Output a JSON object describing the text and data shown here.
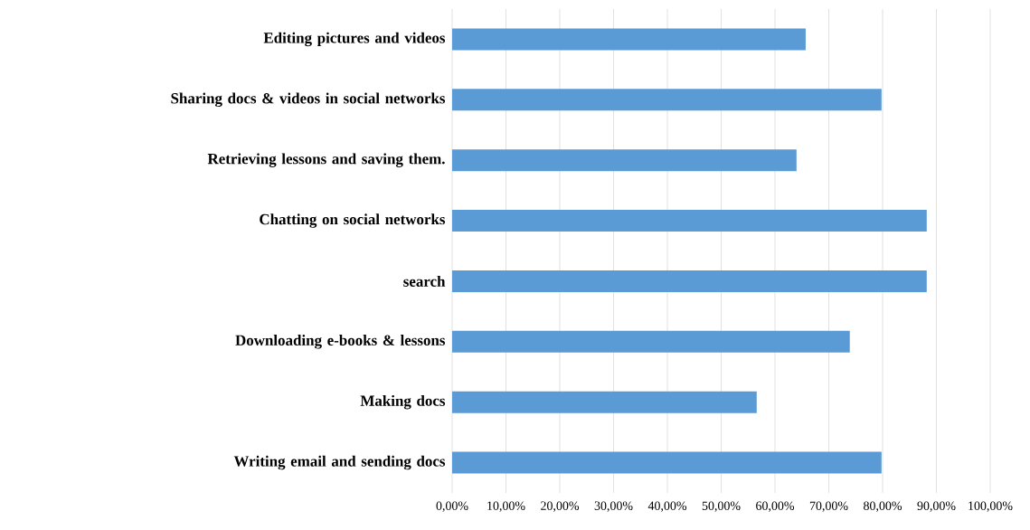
{
  "chart_data": {
    "type": "bar",
    "orientation": "horizontal",
    "categories": [
      "Editing pictures and videos",
      "Sharing docs & videos in social networks",
      "Retrieving lessons and saving them.",
      "Chatting on social networks",
      "search",
      "Downloading e-books & lessons",
      "Making docs",
      "Writing email and sending docs"
    ],
    "values": [
      65.7,
      79.8,
      64.0,
      88.2,
      88.2,
      73.9,
      56.6,
      79.8
    ],
    "color": "#5b9bd5",
    "xlim": [
      0,
      100
    ],
    "xticks": [
      {
        "value": 0,
        "label": "0,00%"
      },
      {
        "value": 10,
        "label": "10,00%"
      },
      {
        "value": 20,
        "label": "20,00%"
      },
      {
        "value": 30,
        "label": "30,00%"
      },
      {
        "value": 40,
        "label": "40,00%"
      },
      {
        "value": 50,
        "label": "50,00%"
      },
      {
        "value": 60,
        "label": "60,00%"
      },
      {
        "value": 70,
        "label": "70,00%"
      },
      {
        "value": 80,
        "label": "80,00%"
      },
      {
        "value": 90,
        "label": "90,00%"
      },
      {
        "value": 100,
        "label": "100,00%"
      }
    ],
    "grid": "x"
  }
}
